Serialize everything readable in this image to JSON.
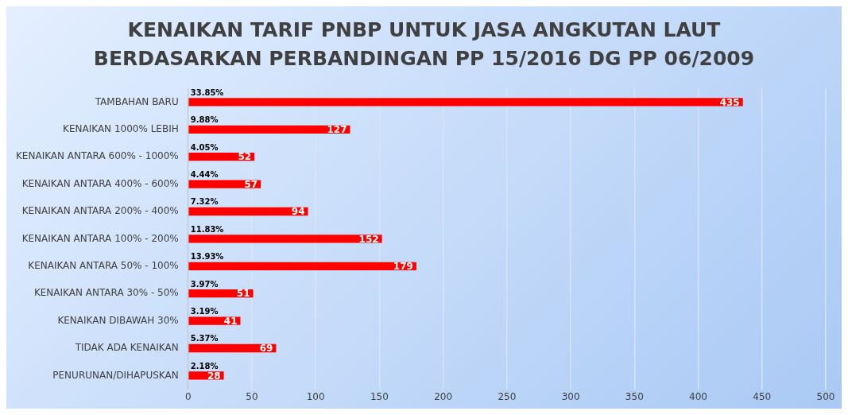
{
  "chart_data": {
    "type": "bar",
    "orientation": "horizontal",
    "title": "KENAIKAN TARIF PNBP UNTUK JASA ANGKUTAN LAUT BERDASARKAN PERBANDINGAN PP 15/2016 DG PP 06/2009",
    "categories": [
      "TAMBAHAN BARU",
      "KENAIKAN 1000% LEBIH",
      "KENAIKAN ANTARA 600% - 1000%",
      "KENAIKAN ANTARA 400% - 600%",
      "KENAIKAN ANTARA 200% - 400%",
      "KENAIKAN ANTARA 100% - 200%",
      "KENAIKAN ANTARA 50% - 100%",
      "KENAIKAN ANTARA 30% - 50%",
      "KENAIKAN DIBAWAH 30%",
      "TIDAK ADA KENAIKAN",
      "PENURUNAN/DIHAPUSKAN"
    ],
    "values": [
      435,
      127,
      52,
      57,
      94,
      152,
      179,
      51,
      41,
      69,
      28
    ],
    "color": "#ff0000",
    "xlim": [
      0,
      500
    ],
    "xticks": [
      0,
      50,
      100,
      150,
      200,
      250,
      300,
      350,
      400,
      450,
      500
    ],
    "grid": "x",
    "legend": false,
    "data_labels": true,
    "annotations": [
      "33.85%",
      "9.88%",
      "4.05%",
      "4.44%",
      "7.32%",
      "11.83%",
      "13.93%",
      "3.97%",
      "3.19%",
      "5.37%",
      "2.18%"
    ]
  }
}
